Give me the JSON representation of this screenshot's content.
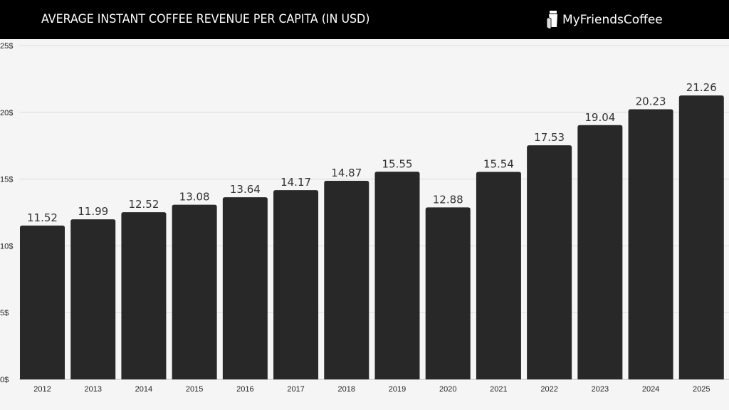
{
  "header": {
    "title": "AVERAGE INSTANT COFFEE REVENUE PER CAPITA (IN USD)",
    "brand": "MyFriendsCoffee",
    "brand_icon": "coffee-cup-hand-icon"
  },
  "colors": {
    "bar": "#282828",
    "header_bg": "#000000",
    "background": "#f5f5f5",
    "grid": "#dddddd"
  },
  "chart_data": {
    "type": "bar",
    "title": "AVERAGE INSTANT COFFEE REVENUE PER CAPITA (IN USD)",
    "categories": [
      "2012",
      "2013",
      "2014",
      "2015",
      "2016",
      "2017",
      "2018",
      "2019",
      "2020",
      "2021",
      "2022",
      "2023",
      "2024",
      "2025"
    ],
    "values": [
      11.52,
      11.99,
      12.52,
      13.08,
      13.64,
      14.17,
      14.87,
      15.55,
      12.88,
      15.54,
      17.53,
      19.04,
      20.23,
      21.26
    ],
    "ylim": [
      0,
      25
    ],
    "yticks": [
      0,
      5,
      10,
      15,
      20,
      25
    ],
    "ytick_labels": [
      "0$",
      "5$",
      "10$",
      "15$",
      "20$",
      "25$"
    ],
    "grid": true,
    "xlabel": "",
    "ylabel": ""
  }
}
